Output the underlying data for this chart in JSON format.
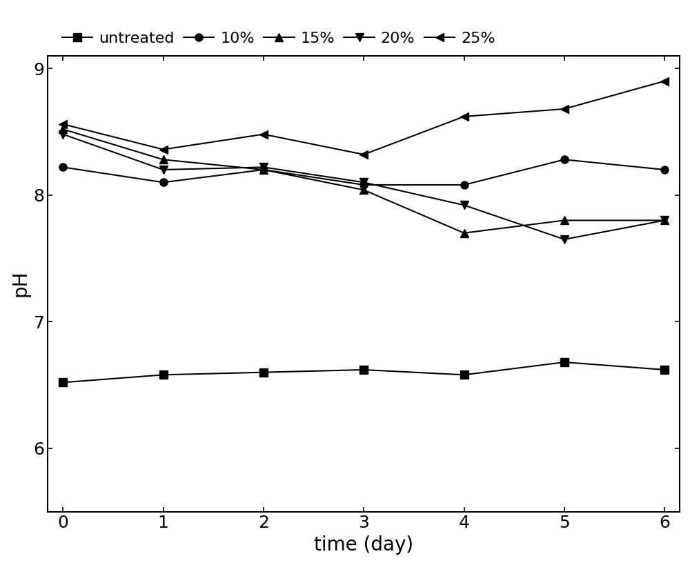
{
  "x": [
    0,
    1,
    2,
    3,
    4,
    5,
    6
  ],
  "series": [
    {
      "key": "untreated",
      "y": [
        6.52,
        6.58,
        6.6,
        6.62,
        6.58,
        6.68,
        6.62
      ],
      "marker": "s",
      "label": "untreated"
    },
    {
      "key": "10%",
      "y": [
        8.22,
        8.1,
        8.2,
        8.08,
        8.08,
        8.28,
        8.2
      ],
      "marker": "o",
      "label": "10%"
    },
    {
      "key": "15%",
      "y": [
        8.52,
        8.28,
        8.2,
        8.04,
        7.7,
        7.8,
        7.8
      ],
      "marker": "^",
      "label": "15%"
    },
    {
      "key": "20%",
      "y": [
        8.48,
        8.2,
        8.22,
        8.1,
        7.92,
        7.65,
        7.8
      ],
      "marker": "v",
      "label": "20%"
    },
    {
      "key": "25%",
      "y": [
        8.56,
        8.36,
        8.48,
        8.32,
        8.62,
        8.68,
        8.9
      ],
      "marker": "<",
      "label": "25%"
    }
  ],
  "xlabel": "time (day)",
  "ylabel": "pH",
  "ylim": [
    5.5,
    9.1
  ],
  "yticks": [
    6,
    7,
    8,
    9
  ],
  "xlim": [
    -0.15,
    6.15
  ],
  "xticks": [
    0,
    1,
    2,
    3,
    4,
    5,
    6
  ],
  "color": "#000000",
  "linewidth": 1.5,
  "markersize": 8,
  "fontsize_label": 20,
  "fontsize_tick": 18,
  "fontsize_legend": 16,
  "background_color": "#ffffff"
}
